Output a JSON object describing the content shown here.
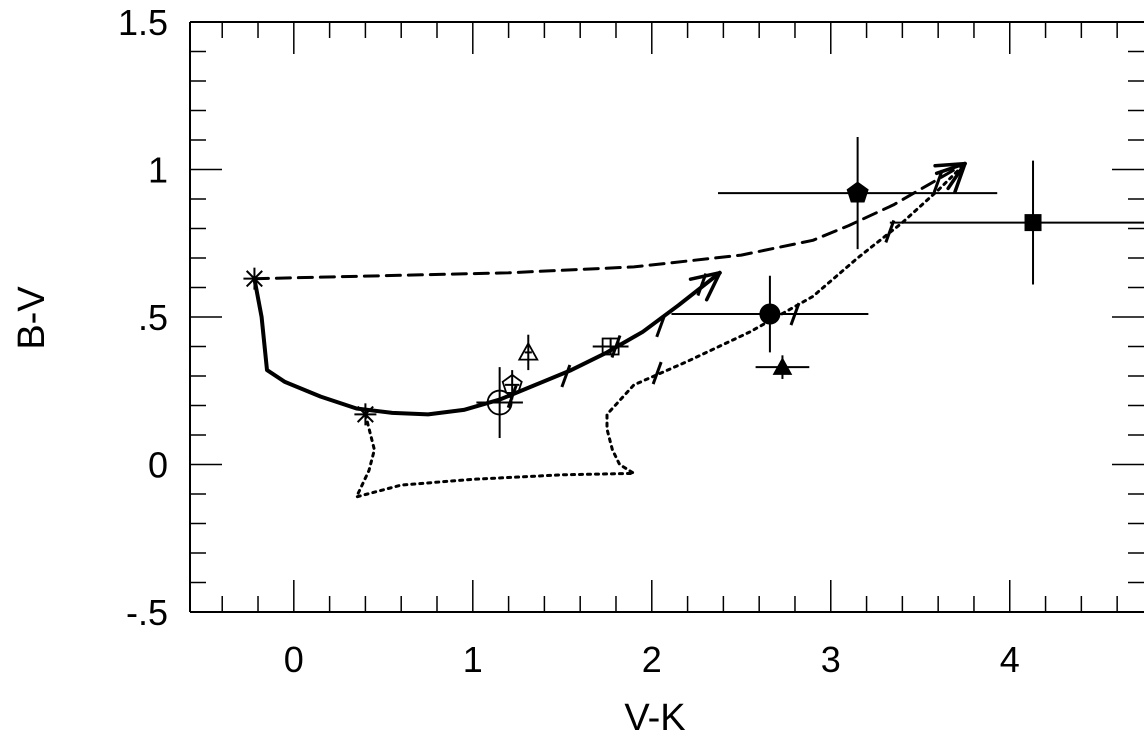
{
  "chart_data": {
    "type": "scatter",
    "title": "",
    "xlabel": "V-K",
    "ylabel": "B-V",
    "xlim": [
      -0.58,
      4.75
    ],
    "ylim": [
      -0.5,
      1.5
    ],
    "x_ticks": [
      {
        "value": 0,
        "label": "0"
      },
      {
        "value": 1,
        "label": "1"
      },
      {
        "value": 2,
        "label": "2"
      },
      {
        "value": 3,
        "label": "3"
      },
      {
        "value": 4,
        "label": "4"
      }
    ],
    "y_ticks": [
      {
        "value": -0.5,
        "label": "-.5"
      },
      {
        "value": 0,
        "label": "0"
      },
      {
        "value": 0.5,
        "label": ".5"
      },
      {
        "value": 1,
        "label": "1"
      },
      {
        "value": 1.5,
        "label": "1.5"
      }
    ],
    "x_minor_step": 0.2,
    "y_minor_step": 0.1,
    "grid": false,
    "legend": "none",
    "tracks": [
      {
        "style": "solid",
        "points": [
          [
            -0.22,
            0.63
          ],
          [
            -0.18,
            0.5
          ],
          [
            -0.16,
            0.38
          ],
          [
            -0.15,
            0.32
          ],
          [
            -0.05,
            0.28
          ],
          [
            0.15,
            0.23
          ],
          [
            0.35,
            0.19
          ],
          [
            0.55,
            0.175
          ],
          [
            0.75,
            0.17
          ],
          [
            0.95,
            0.185
          ],
          [
            1.15,
            0.22
          ],
          [
            1.35,
            0.27
          ],
          [
            1.55,
            0.32
          ],
          [
            1.75,
            0.38
          ],
          [
            1.95,
            0.45
          ],
          [
            2.15,
            0.54
          ],
          [
            2.38,
            0.65
          ]
        ],
        "arrow": true,
        "stars": [
          [
            -0.22,
            0.63
          ],
          [
            0.4,
            0.17
          ]
        ],
        "ticks": [
          [
            1.22,
            0.23
          ],
          [
            1.52,
            0.3
          ],
          [
            1.8,
            0.4
          ],
          [
            2.05,
            0.47
          ],
          [
            2.28,
            0.61
          ]
        ]
      },
      {
        "style": "dotted",
        "points": [
          [
            0.4,
            0.17
          ],
          [
            0.45,
            0.05
          ],
          [
            0.42,
            -0.02
          ],
          [
            0.35,
            -0.11
          ],
          [
            0.6,
            -0.07
          ],
          [
            1.0,
            -0.05
          ],
          [
            1.5,
            -0.035
          ],
          [
            1.9,
            -0.03
          ],
          [
            1.82,
            -0.0
          ],
          [
            1.78,
            0.05
          ],
          [
            1.75,
            0.12
          ],
          [
            1.75,
            0.17
          ],
          [
            1.9,
            0.27
          ],
          [
            2.2,
            0.35
          ],
          [
            2.55,
            0.45
          ],
          [
            2.9,
            0.57
          ],
          [
            3.15,
            0.7
          ],
          [
            3.4,
            0.82
          ],
          [
            3.6,
            0.93
          ],
          [
            3.75,
            1.02
          ]
        ],
        "arrow": true,
        "stars": [],
        "ticks": [
          [
            2.03,
            0.31
          ],
          [
            2.8,
            0.51
          ],
          [
            3.33,
            0.79
          ],
          [
            3.6,
            0.96
          ]
        ]
      },
      {
        "style": "dashed",
        "points": [
          [
            -0.22,
            0.63
          ],
          [
            0.5,
            0.64
          ],
          [
            1.2,
            0.65
          ],
          [
            1.9,
            0.67
          ],
          [
            2.5,
            0.71
          ],
          [
            2.9,
            0.76
          ],
          [
            3.1,
            0.81
          ],
          [
            3.35,
            0.88
          ],
          [
            3.55,
            0.95
          ],
          [
            3.75,
            1.02
          ]
        ],
        "arrow": true,
        "stars": [],
        "ticks": []
      }
    ],
    "observations": [
      {
        "marker": "filled-pentagon",
        "x": 3.15,
        "y": 0.92,
        "xerr": 0.78,
        "yerr": 0.19
      },
      {
        "marker": "filled-square",
        "x": 4.13,
        "y": 0.82,
        "xerr": 0.8,
        "yerr": 0.21
      },
      {
        "marker": "filled-circle",
        "x": 2.66,
        "y": 0.51,
        "xerr": 0.55,
        "yerr": 0.13
      },
      {
        "marker": "filled-triangle",
        "x": 2.73,
        "y": 0.33,
        "xerr": 0.15,
        "yerr": 0.04
      },
      {
        "marker": "open-circle",
        "x": 1.15,
        "y": 0.21,
        "xerr": 0.13,
        "yerr": 0.12
      },
      {
        "marker": "open-pentagon",
        "x": 1.22,
        "y": 0.27,
        "xerr": 0.04,
        "yerr": 0.05
      },
      {
        "marker": "open-triangle",
        "x": 1.31,
        "y": 0.38,
        "xerr": 0.02,
        "yerr": 0.06
      },
      {
        "marker": "open-square",
        "x": 1.77,
        "y": 0.4,
        "xerr": 0.1,
        "yerr": 0.03
      }
    ]
  }
}
